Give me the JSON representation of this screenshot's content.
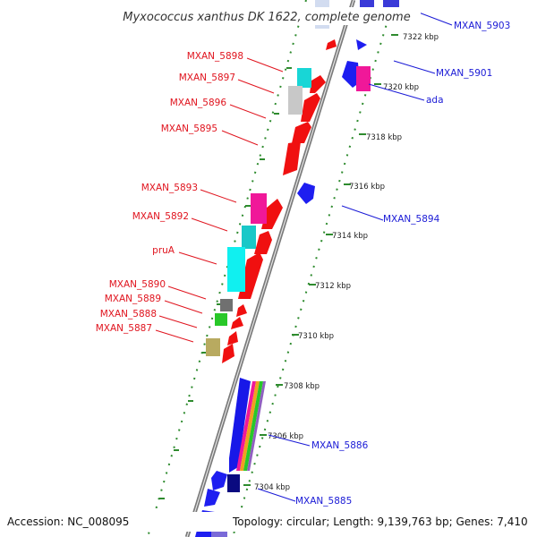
{
  "title": "Myxococcus xanthus DK 1622, complete genome",
  "accession": "Accession: NC_008095",
  "topology": "Topology: circular; Length: 9,139,763 bp; Genes: 7,410",
  "colors": {
    "left_label": "#e0141e",
    "right_label": "#1a1ad6",
    "dots": "#2e8b2e",
    "backbone": "#7a7a7a"
  },
  "ticks": [
    "7322 kbp",
    "7320 kbp",
    "7318 kbp",
    "7316 kbp",
    "7314 kbp",
    "7312 kbp",
    "7310 kbp",
    "7308 kbp",
    "7306 kbp",
    "7304 kbp"
  ],
  "left_genes": [
    {
      "label": "MXAN_5898",
      "color": "#18d6d6"
    },
    {
      "label": "MXAN_5897",
      "color": "#c8c8c8"
    },
    {
      "label": "MXAN_5896",
      "color": "#f01010"
    },
    {
      "label": "MXAN_5895",
      "color": "#f01010"
    },
    {
      "label": "MXAN_5893",
      "color": "#f01899"
    },
    {
      "label": "MXAN_5892",
      "color": "#18c8c8"
    },
    {
      "label": "pruA",
      "color": "#10f0f0"
    },
    {
      "label": "MXAN_5890",
      "color": "#707070"
    },
    {
      "label": "MXAN_5889",
      "color": "#28c828"
    },
    {
      "label": "MXAN_5888",
      "color": "#f01010"
    },
    {
      "label": "MXAN_5887",
      "color": "#b8aa60"
    }
  ],
  "right_genes": [
    {
      "label": "MXAN_5903",
      "color": "#2a2ad0"
    },
    {
      "label": "MXAN_5901",
      "color": "#1e1ef0"
    },
    {
      "label": "ada",
      "color": "#f01899"
    },
    {
      "label": "MXAN_5894",
      "color": "#1e1ef0"
    },
    {
      "label": "MXAN_5886",
      "color": "#1818e8"
    },
    {
      "label": "MXAN_5885",
      "color": "#0a0a80"
    }
  ]
}
